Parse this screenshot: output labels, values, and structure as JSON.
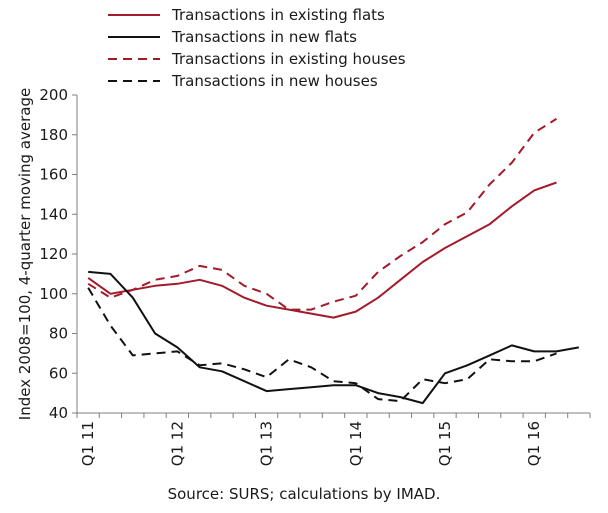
{
  "chart_data": {
    "type": "line",
    "ylabel": "Index 2008=100, 4-quarter moving average",
    "ylim": [
      40,
      200
    ],
    "yticks": [
      40,
      60,
      80,
      100,
      120,
      140,
      160,
      180,
      200
    ],
    "grid": false,
    "legend_position": "top",
    "x": [
      "Q1 11",
      "Q2 11",
      "Q3 11",
      "Q4 11",
      "Q1 12",
      "Q2 12",
      "Q3 12",
      "Q4 12",
      "Q1 13",
      "Q2 13",
      "Q3 13",
      "Q4 13",
      "Q1 14",
      "Q2 14",
      "Q3 14",
      "Q4 14",
      "Q1 15",
      "Q2 15",
      "Q3 15",
      "Q4 15",
      "Q1 16",
      "Q2 16",
      "Q3 16"
    ],
    "xtick_labels": [
      "Q1 11",
      "Q1 12",
      "Q1 13",
      "Q1 14",
      "Q1 15",
      "Q1 16"
    ],
    "series": [
      {
        "name": "Transactions in existing flats",
        "color": "#a31a2a",
        "dash": "solid",
        "values": [
          108,
          100,
          102,
          104,
          105,
          107,
          104,
          98,
          94,
          92,
          90,
          88,
          91,
          98,
          107,
          116,
          123,
          129,
          135,
          144,
          152,
          156,
          null
        ]
      },
      {
        "name": "Transactions in new flats",
        "color": "#111111",
        "dash": "solid",
        "values": [
          111,
          110,
          98,
          80,
          73,
          63,
          61,
          56,
          51,
          52,
          53,
          54,
          54,
          50,
          48,
          45,
          60,
          64,
          69,
          74,
          71,
          71,
          73
        ]
      },
      {
        "name": "Transactions in existing houses",
        "color": "#a31a2a",
        "dash": "dashed",
        "values": [
          105,
          98,
          102,
          107,
          109,
          114,
          112,
          104,
          100,
          92,
          92,
          96,
          99,
          111,
          119,
          126,
          135,
          141,
          155,
          166,
          181,
          188,
          null
        ]
      },
      {
        "name": "Transactions in new houses",
        "color": "#111111",
        "dash": "dashed",
        "values": [
          103,
          84,
          69,
          70,
          71,
          64,
          65,
          62,
          58,
          67,
          63,
          56,
          55,
          47,
          46,
          57,
          55,
          57,
          67,
          66,
          66,
          70,
          null
        ]
      }
    ]
  },
  "source": "Source: SURS; calculations by IMAD."
}
